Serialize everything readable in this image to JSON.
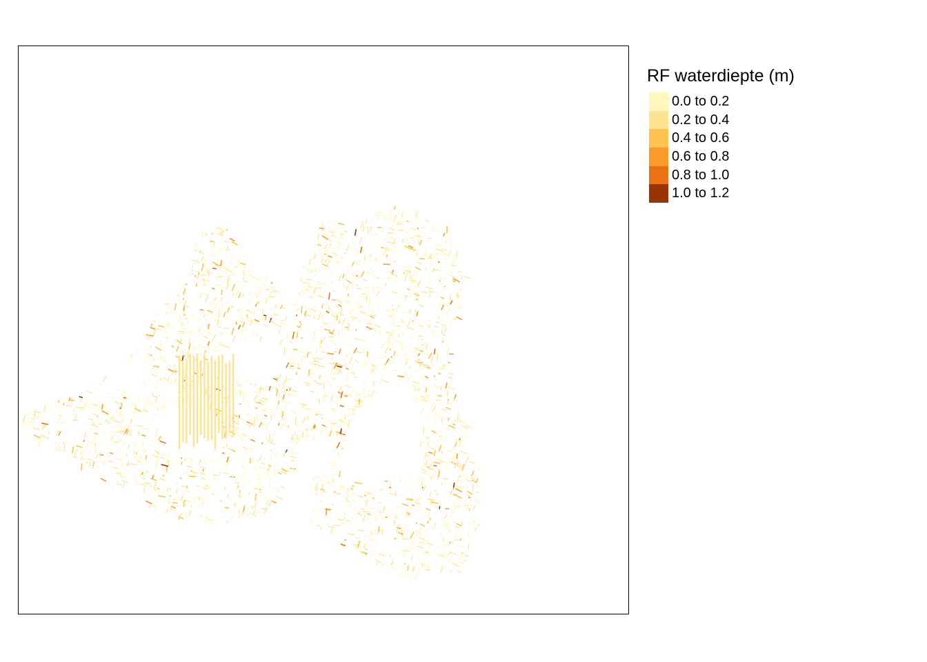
{
  "legend": {
    "title": "RF waterdiepte (m)",
    "items": [
      {
        "label": "0.0 to 0.2",
        "color": "#FFF7BC"
      },
      {
        "label": "0.2 to 0.4",
        "color": "#FEE391"
      },
      {
        "label": "0.4 to 0.6",
        "color": "#FEC44F"
      },
      {
        "label": "0.6 to 0.8",
        "color": "#FB9A29"
      },
      {
        "label": "0.8 to 1.0",
        "color": "#EC7014"
      },
      {
        "label": "1.0 to 1.2",
        "color": "#993404"
      }
    ]
  },
  "map": {
    "layer": "RF waterdiepte (m)",
    "palette": "YlOrBr",
    "frame": true,
    "classes": [
      {
        "min": 0.0,
        "max": 0.2
      },
      {
        "min": 0.2,
        "max": 0.4
      },
      {
        "min": 0.4,
        "max": 0.6
      },
      {
        "min": 0.6,
        "max": 0.8
      },
      {
        "min": 0.8,
        "max": 1.0
      },
      {
        "min": 1.0,
        "max": 1.2
      }
    ]
  }
}
